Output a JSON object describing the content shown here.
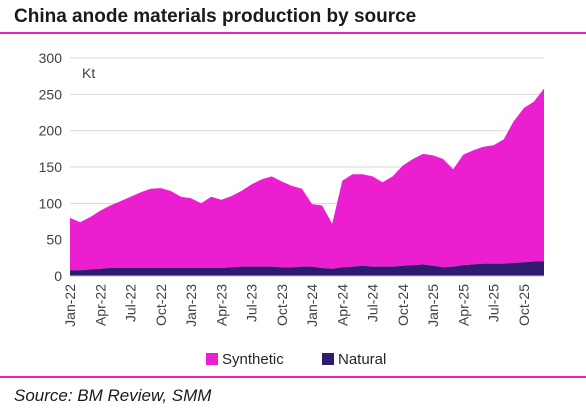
{
  "title": "China anode materials production by source",
  "source": "Source: BM Review, SMM",
  "chart_data": {
    "type": "area",
    "stacked": true,
    "unit_label": "Kt",
    "ylim": [
      0,
      300
    ],
    "yticks": [
      0,
      50,
      100,
      150,
      200,
      250,
      300
    ],
    "x_tick_labels": [
      "Jan-22",
      "Apr-22",
      "Jul-22",
      "Oct-22",
      "Jan-23",
      "Apr-23",
      "Jul-23",
      "Oct-23",
      "Jan-24",
      "Apr-24",
      "Jul-24",
      "Oct-24",
      "Jan-25",
      "Apr-25",
      "Jul-25",
      "Oct-25"
    ],
    "x": [
      "Jan-22",
      "Feb-22",
      "Mar-22",
      "Apr-22",
      "May-22",
      "Jun-22",
      "Jul-22",
      "Aug-22",
      "Sep-22",
      "Oct-22",
      "Nov-22",
      "Dec-22",
      "Jan-23",
      "Feb-23",
      "Mar-23",
      "Apr-23",
      "May-23",
      "Jun-23",
      "Jul-23",
      "Aug-23",
      "Sep-23",
      "Oct-23",
      "Nov-23",
      "Dec-23",
      "Jan-24",
      "Feb-24",
      "Mar-24",
      "Apr-24",
      "May-24",
      "Jun-24",
      "Jul-24",
      "Aug-24",
      "Sep-24",
      "Oct-24",
      "Nov-24",
      "Dec-24",
      "Jan-25",
      "Feb-25",
      "Mar-25",
      "Apr-25",
      "May-25",
      "Jun-25",
      "Jul-25",
      "Aug-25",
      "Sep-25",
      "Oct-25",
      "Nov-25",
      "Dec-25"
    ],
    "series": [
      {
        "name": "Natural",
        "color": "#2e1a6e",
        "values": [
          8,
          8,
          9,
          10,
          11,
          11,
          11,
          11,
          11,
          11,
          11,
          11,
          11,
          11,
          11,
          11,
          12,
          13,
          13,
          13,
          13,
          12,
          12,
          13,
          13,
          11,
          10,
          12,
          13,
          14,
          13,
          13,
          13,
          14,
          15,
          16,
          14,
          12,
          13,
          15,
          16,
          17,
          17,
          17,
          18,
          19,
          20,
          20
        ]
      },
      {
        "name": "Synthetic",
        "color": "#ec1fd0",
        "values": [
          72,
          66,
          72,
          80,
          86,
          92,
          98,
          104,
          109,
          110,
          106,
          98,
          96,
          89,
          98,
          94,
          98,
          104,
          113,
          120,
          124,
          118,
          112,
          107,
          86,
          86,
          62,
          119,
          127,
          126,
          124,
          116,
          124,
          138,
          146,
          152,
          152,
          149,
          134,
          152,
          157,
          161,
          163,
          171,
          195,
          212,
          220,
          238
        ]
      }
    ],
    "legend": [
      {
        "label": "Synthetic",
        "color": "#ec1fd0"
      },
      {
        "label": "Natural",
        "color": "#2e1a6e"
      }
    ],
    "legend_position": "bottom",
    "grid": true
  }
}
